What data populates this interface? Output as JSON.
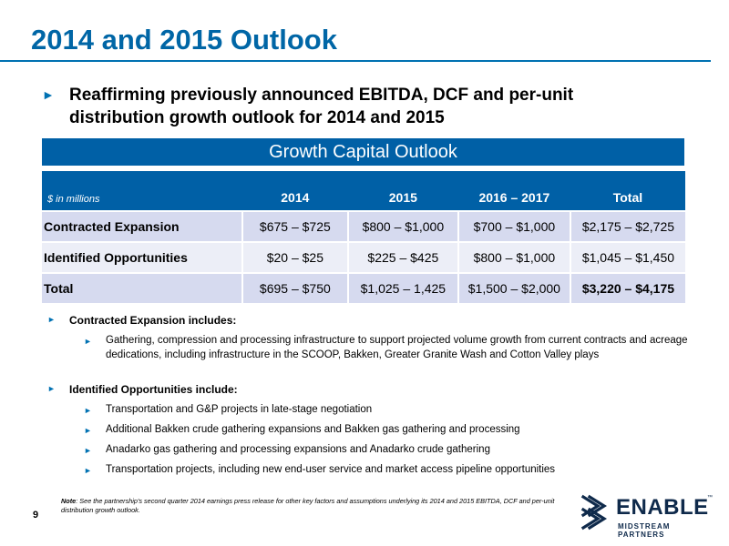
{
  "slide": {
    "title": "2014 and 2015 Outlook",
    "headline": "Reaffirming previously announced EBITDA, DCF and per-unit distribution growth outlook for 2014 and 2015",
    "bullet_arrow": "►",
    "page_number": "9"
  },
  "table": {
    "title": "Growth Capital Outlook",
    "unit_label": "$ in millions",
    "columns": [
      "2014",
      "2015",
      "2016 – 2017",
      "Total"
    ],
    "rows": [
      {
        "label": "Contracted Expansion",
        "values": [
          "$675 – $725",
          "$800 – $1,000",
          "$700 – $1,000",
          "$2,175 – $2,725"
        ]
      },
      {
        "label": "Identified Opportunities",
        "values": [
          "$20 – $25",
          "$225 – $425",
          "$800 – $1,000",
          "$1,045 – $1,450"
        ]
      },
      {
        "label": "Total",
        "values": [
          "$695 – $750",
          "$1,025 – 1,425",
          "$1,500 – $2,000",
          "$3,220 – $4,175"
        ]
      }
    ]
  },
  "bullets": {
    "contracted_heading": "Contracted Expansion includes:",
    "contracted_items": [
      "Gathering, compression and processing infrastructure to support projected volume growth from current contracts and acreage dedications, including infrastructure in the SCOOP, Bakken, Greater Granite Wash and Cotton Valley plays"
    ],
    "identified_heading": "Identified Opportunities include:",
    "identified_items": [
      "Transportation and G&P projects in late-stage negotiation",
      "Additional Bakken crude gathering expansions and Bakken gas gathering and processing",
      "Anadarko gas gathering and processing expansions and Anadarko crude gathering",
      "Transportation projects, including new end-user service and market access pipeline opportunities"
    ]
  },
  "note": {
    "label": "Note",
    "text": ": See the partnership's second quarter 2014 earnings press release for other key factors and assumptions underlying its 2014 and 2015 EBITDA, DCF and per-unit distribution growth outlook."
  },
  "logo": {
    "word": "ENABLE",
    "sub": "MIDSTREAM PARTNERS",
    "tm": "™",
    "icon": "enable-chevron-icon"
  },
  "colors": {
    "brand_blue": "#0066a6",
    "table_header": "#0060a6",
    "row_dark": "#d6daef",
    "row_light": "#eceef7",
    "logo_navy": "#0f2a4b"
  }
}
